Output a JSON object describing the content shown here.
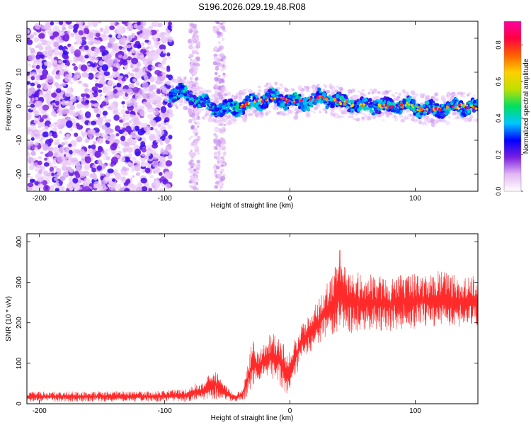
{
  "chart_data": [
    {
      "type": "heatmap",
      "title": "S196.2026.029.19.48.R08",
      "xlabel": "Height of straight line (km)",
      "ylabel": "Frequency (Hz)",
      "xlim": [
        -210,
        150
      ],
      "ylim": [
        -25,
        25
      ],
      "xticks": [
        -200,
        -100,
        0,
        100
      ],
      "yticks": [
        -20,
        -10,
        0,
        10,
        20
      ],
      "colorbar": {
        "label": "Normalized spectral amplitude",
        "range": [
          0,
          0.93
        ],
        "ticks": [
          0.0,
          0.2,
          0.4,
          0.6,
          0.8
        ],
        "colormap": [
          "#ffffff",
          "#e3b8f4",
          "#7a1fe0",
          "#0000ff",
          "#00c8ff",
          "#00e060",
          "#c0e000",
          "#ffd000",
          "#ff6000",
          "#ff0040",
          "#ff00a0"
        ]
      },
      "ridge": {
        "x": [
          -95,
          -85,
          -75,
          -65,
          -55,
          -45,
          -35,
          -25,
          -15,
          -5,
          5,
          15,
          25,
          35,
          45,
          55,
          65,
          75,
          85,
          95,
          105,
          115,
          125,
          135,
          145
        ],
        "y": [
          4,
          4,
          2,
          0,
          -1,
          -0.5,
          0.5,
          1.5,
          2.5,
          2,
          1,
          1.5,
          2.5,
          1.5,
          1,
          0,
          0.5,
          0,
          0,
          0.5,
          -1,
          -1,
          -0.5,
          0,
          -0.5
        ]
      }
    },
    {
      "type": "line",
      "xlabel": "Height of straight line (km)",
      "ylabel": "SNR (10 * v/v)",
      "xlim": [
        -210,
        150
      ],
      "ylim": [
        0,
        420
      ],
      "xticks": [
        -200,
        -100,
        0,
        100
      ],
      "yticks": [
        0,
        100,
        200,
        300,
        400
      ],
      "series": [
        {
          "name": "SNR",
          "color": "#ff2a2a",
          "envelope": {
            "x": [
              -210,
              -100,
              -80,
              -76,
              -70,
              -60,
              -55,
              -45,
              -38,
              -35,
              -30,
              -25,
              -20,
              -15,
              -10,
              -5,
              -2,
              0,
              5,
              10,
              15,
              20,
              25,
              30,
              35,
              40,
              45,
              50,
              60,
              70,
              80,
              90,
              100,
              110,
              120,
              130,
              140,
              150
            ],
            "low": [
              5,
              5,
              5,
              8,
              10,
              12,
              10,
              5,
              8,
              12,
              40,
              55,
              70,
              60,
              60,
              25,
              20,
              40,
              70,
              110,
              120,
              140,
              150,
              160,
              170,
              185,
              170,
              175,
              180,
              180,
              180,
              185,
              185,
              190,
              190,
              190,
              190,
              190
            ],
            "high": [
              30,
              32,
              40,
              50,
              55,
              90,
              60,
              25,
              35,
              80,
              160,
              130,
              150,
              180,
              165,
              150,
              120,
              140,
              170,
              200,
              230,
              250,
              270,
              300,
              330,
              400,
              330,
              330,
              320,
              320,
              315,
              320,
              325,
              320,
              330,
              320,
              315,
              320
            ]
          }
        }
      ]
    }
  ]
}
